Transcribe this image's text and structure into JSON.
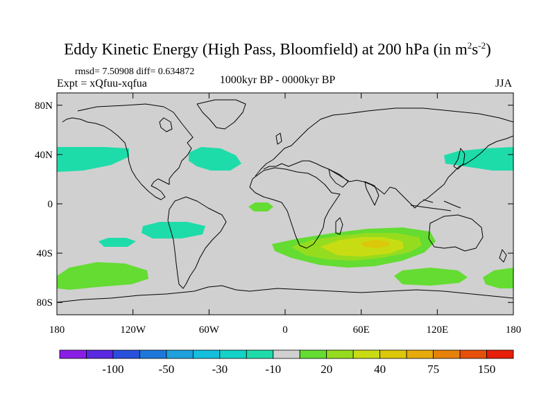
{
  "title": {
    "main": "Eddy Kinetic Energy (High Pass, Bloomfield) at 200 hPa (in m",
    "sup1": "2",
    "s": "s",
    "sup2": "-2",
    "close": ")"
  },
  "stats_label": "rmsd= 7.50908 diff= 0.634872",
  "expt_label": "Expt = xQfuu-xqfua",
  "period_label": "1000kyr BP - 0000kyr BP",
  "season_label": "JJA",
  "map": {
    "lon_range": [
      -180,
      180
    ],
    "lat_range": [
      -90,
      90
    ],
    "lat_ticks": [
      {
        "value": 80,
        "label": "80N"
      },
      {
        "value": 40,
        "label": "40N"
      },
      {
        "value": 0,
        "label": "0"
      },
      {
        "value": -40,
        "label": "40S"
      },
      {
        "value": -80,
        "label": "80S"
      }
    ],
    "lon_ticks": [
      {
        "value": -180,
        "label": "180"
      },
      {
        "value": -120,
        "label": "120W"
      },
      {
        "value": -60,
        "label": "60W"
      },
      {
        "value": 0,
        "label": "0"
      },
      {
        "value": 60,
        "label": "60E"
      },
      {
        "value": 120,
        "label": "120E"
      },
      {
        "value": 180,
        "label": "180"
      }
    ],
    "background_color": "#d0d0d0"
  },
  "colorbar": {
    "colors": [
      "#8a1ee6",
      "#5a28e0",
      "#2850dc",
      "#1e78dc",
      "#1ea0dc",
      "#14bedc",
      "#14d2c8",
      "#1edcaa",
      "#d0d0d0",
      "#64dc32",
      "#96dc1e",
      "#c8dc14",
      "#dcc80a",
      "#e6aa0a",
      "#e6820a",
      "#e6500a",
      "#e61e0a"
    ],
    "labels": [
      {
        "boundary": 2,
        "text": "-100"
      },
      {
        "boundary": 4,
        "text": "-50"
      },
      {
        "boundary": 6,
        "text": "-30"
      },
      {
        "boundary": 8,
        "text": "-10"
      },
      {
        "boundary": 10,
        "text": "20"
      },
      {
        "boundary": 12,
        "text": "40"
      },
      {
        "boundary": 14,
        "text": "75"
      },
      {
        "boundary": 16,
        "text": "150"
      }
    ]
  }
}
